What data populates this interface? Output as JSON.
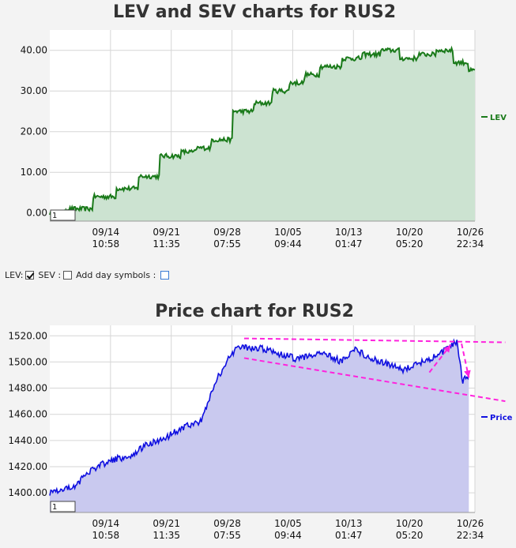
{
  "chart_data": [
    {
      "type": "area",
      "title": "LEV and SEV charts for RUS2",
      "ylim": [
        -2,
        45
      ],
      "y_ticks": [
        "0.00",
        "10.00",
        "20.00",
        "30.00",
        "40.00"
      ],
      "x_ticks": [
        {
          "date": "09/14",
          "time": "10:58"
        },
        {
          "date": "09/21",
          "time": "11:35"
        },
        {
          "date": "09/28",
          "time": "07:55"
        },
        {
          "date": "10/05",
          "time": "09:44"
        },
        {
          "date": "10/13",
          "time": "01:47"
        },
        {
          "date": "10/20",
          "time": "05:20"
        },
        {
          "date": "10/26",
          "time": "22:34"
        }
      ],
      "legend_position": "right",
      "zoom_input": "1",
      "series": [
        {
          "name": "LEV",
          "color": "#1a7a1a",
          "fill": "#cce3d1",
          "x_index": [
            0,
            0.5,
            0.9,
            1.3,
            1.6,
            2.0,
            2.3,
            2.5,
            2.8,
            3.2,
            3.5,
            3.8,
            4.1,
            4.3,
            4.6,
            5.0,
            5.3,
            5.6,
            5.9,
            6.2,
            6.5,
            6.8,
            7.0
          ],
          "values": [
            0.0,
            1.0,
            4.0,
            6.0,
            9.0,
            14.0,
            15.0,
            16.0,
            18.0,
            25.0,
            27.0,
            30.0,
            32.0,
            34.0,
            36.0,
            38.0,
            39.0,
            40.0,
            38.0,
            39.0,
            40.0,
            37.0,
            35.0
          ]
        }
      ]
    },
    {
      "type": "area",
      "title": "Price chart for RUS2",
      "ylim": [
        1385,
        1528
      ],
      "y_ticks": [
        "1400.00",
        "1420.00",
        "1440.00",
        "1460.00",
        "1480.00",
        "1500.00",
        "1520.00"
      ],
      "x_ticks": [
        {
          "date": "09/14",
          "time": "10:58"
        },
        {
          "date": "09/21",
          "time": "11:35"
        },
        {
          "date": "09/28",
          "time": "07:55"
        },
        {
          "date": "10/05",
          "time": "09:44"
        },
        {
          "date": "10/13",
          "time": "01:47"
        },
        {
          "date": "10/20",
          "time": "05:20"
        },
        {
          "date": "10/26",
          "time": "22:34"
        }
      ],
      "legend_position": "right",
      "zoom_input": "1",
      "series": [
        {
          "name": "Price",
          "color": "#1010e0",
          "fill": "#c9c9ef",
          "x_index": [
            0,
            0.4,
            0.7,
            1.0,
            1.3,
            1.6,
            1.9,
            2.2,
            2.5,
            2.7,
            2.9,
            3.1,
            3.5,
            3.8,
            4.1,
            4.5,
            4.8,
            5.0,
            5.3,
            5.6,
            5.8,
            6.1,
            6.4,
            6.7,
            6.8,
            6.9
          ],
          "values": [
            1400,
            1405,
            1418,
            1425,
            1428,
            1437,
            1442,
            1450,
            1455,
            1482,
            1500,
            1512,
            1510,
            1506,
            1502,
            1508,
            1500,
            1510,
            1503,
            1498,
            1494,
            1500,
            1505,
            1516,
            1485,
            1490
          ]
        }
      ],
      "annotations": [
        {
          "type": "trendline",
          "color": "#ff22dd",
          "from": [
            3.2,
            1518
          ],
          "to": [
            7.5,
            1515
          ]
        },
        {
          "type": "trendline",
          "color": "#ff22dd",
          "from": [
            3.2,
            1503
          ],
          "to": [
            7.5,
            1470
          ]
        },
        {
          "type": "arrow",
          "color": "#ff22dd",
          "from": [
            6.25,
            1492
          ],
          "to": [
            6.6,
            1513
          ]
        },
        {
          "type": "arrow",
          "color": "#ff22dd",
          "from": [
            6.78,
            1514
          ],
          "to": [
            6.9,
            1488
          ]
        }
      ]
    }
  ],
  "controls": {
    "lev_label": "LEV:",
    "lev_checked": true,
    "sev_label": "SEV :",
    "sev_checked": false,
    "day_symbols_label": "Add day symbols :",
    "day_symbols_checked": false
  }
}
